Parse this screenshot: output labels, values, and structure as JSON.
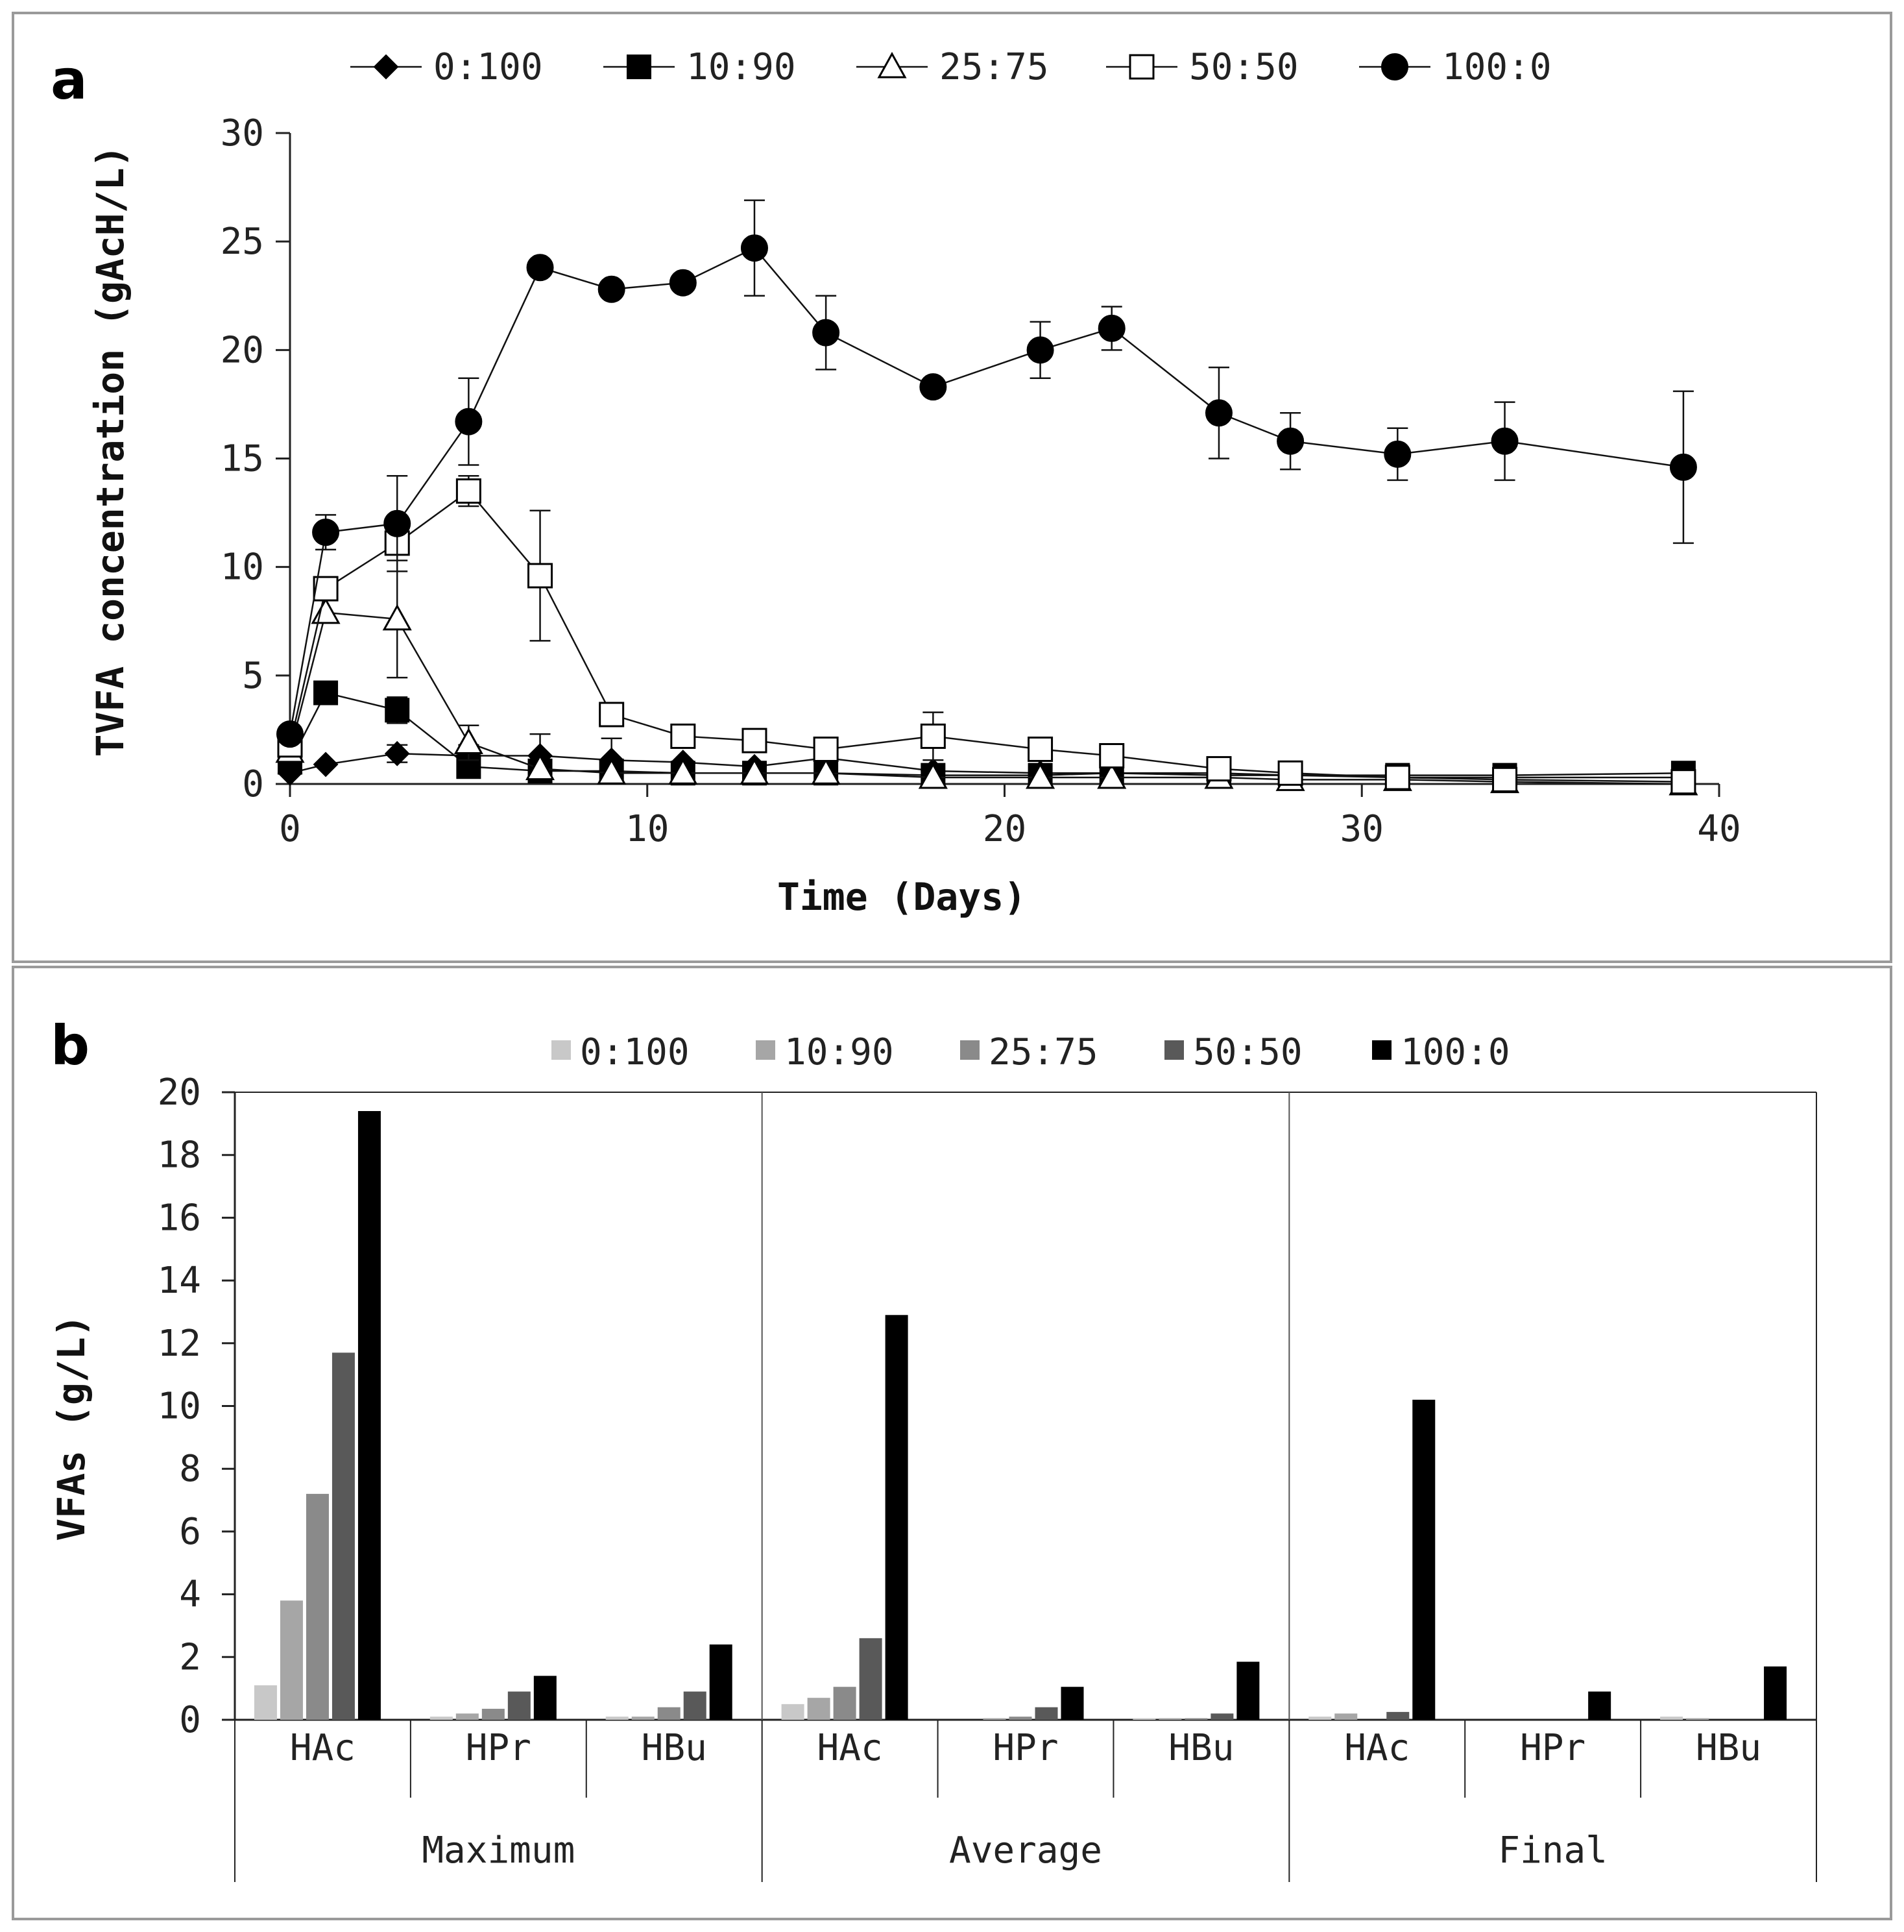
{
  "chart_data": [
    {
      "panel": "a",
      "type": "line",
      "xlabel": "Time (Days)",
      "ylabel": "TVFA concentration (gAcH/L)",
      "xlim": [
        0,
        40
      ],
      "ylim": [
        0,
        30
      ],
      "xticks": [
        0,
        10,
        20,
        30,
        40
      ],
      "yticks": [
        0,
        5,
        10,
        15,
        20,
        25,
        30
      ],
      "grid": false,
      "legend_position": "top",
      "series": [
        {
          "name": "0:100",
          "marker": "diamond",
          "x": [
            0,
            1,
            3,
            5,
            7,
            9,
            11,
            13,
            15,
            18,
            21,
            23,
            26,
            28,
            31,
            34,
            39
          ],
          "y": [
            0.5,
            0.9,
            1.4,
            1.3,
            1.3,
            1.1,
            1.0,
            0.8,
            1.2,
            0.6,
            0.5,
            0.5,
            0.4,
            0.4,
            0.3,
            0.3,
            0.3
          ],
          "err": [
            0,
            0,
            0.4,
            0.5,
            1.0,
            1.0,
            0,
            0,
            0,
            0,
            0,
            0,
            0,
            0,
            0,
            0,
            0
          ]
        },
        {
          "name": "10:90",
          "marker": "filled-square",
          "x": [
            0,
            1,
            3,
            5,
            7,
            9,
            11,
            13,
            15,
            18,
            21,
            23,
            26,
            28,
            31,
            34,
            39
          ],
          "y": [
            1.0,
            4.2,
            3.4,
            0.8,
            0.6,
            0.6,
            0.5,
            0.5,
            0.5,
            0.4,
            0.4,
            0.5,
            0.5,
            0.4,
            0.4,
            0.4,
            0.5
          ],
          "err": [
            0,
            0,
            0.6,
            0,
            0,
            0,
            0,
            0,
            0,
            0,
            0,
            0,
            0,
            0,
            0,
            0,
            0
          ]
        },
        {
          "name": "25:75",
          "marker": "open-triangle",
          "x": [
            0,
            1,
            3,
            5,
            7,
            9,
            11,
            13,
            15,
            18,
            21,
            23,
            26,
            28,
            31,
            34,
            39
          ],
          "y": [
            1.5,
            7.9,
            7.6,
            1.9,
            0.7,
            0.5,
            0.5,
            0.5,
            0.5,
            0.3,
            0.3,
            0.3,
            0.3,
            0.2,
            0.2,
            0.1,
            0.0
          ],
          "err": [
            0,
            0,
            2.7,
            0.8,
            0,
            0,
            0,
            0,
            0,
            0,
            0,
            0,
            0,
            0,
            0,
            0,
            0
          ]
        },
        {
          "name": "50:50",
          "marker": "open-square",
          "x": [
            0,
            1,
            3,
            5,
            7,
            9,
            11,
            13,
            15,
            18,
            21,
            23,
            26,
            28,
            31,
            34,
            39
          ],
          "y": [
            1.8,
            9.0,
            11.1,
            13.5,
            9.6,
            3.2,
            2.2,
            2.0,
            1.6,
            2.2,
            1.6,
            1.3,
            0.7,
            0.5,
            0.3,
            0.2,
            0.1
          ],
          "err": [
            0,
            0,
            0,
            0.7,
            3.0,
            0.4,
            0.4,
            0.4,
            0,
            1.1,
            0.2,
            0.2,
            0,
            0,
            0,
            0,
            0
          ]
        },
        {
          "name": "100:0",
          "marker": "filled-circle",
          "x": [
            0,
            1,
            3,
            5,
            7,
            9,
            11,
            13,
            15,
            18,
            21,
            23,
            26,
            28,
            31,
            34,
            39
          ],
          "y": [
            2.3,
            11.6,
            12.0,
            16.7,
            23.8,
            22.8,
            23.1,
            24.7,
            20.8,
            18.3,
            20.0,
            21.0,
            17.1,
            15.8,
            15.2,
            15.8,
            14.6
          ],
          "err": [
            0,
            0.8,
            2.2,
            2.0,
            0,
            0,
            0,
            2.2,
            1.7,
            0,
            1.3,
            1.0,
            2.1,
            1.3,
            1.2,
            1.8,
            3.5
          ]
        }
      ]
    },
    {
      "panel": "b",
      "type": "bar",
      "xlabel": "",
      "ylabel": "VFAs (g/L)",
      "ylim": [
        0,
        20
      ],
      "yticks": [
        0,
        2,
        4,
        6,
        8,
        10,
        12,
        14,
        16,
        18,
        20
      ],
      "grid": false,
      "legend_position": "top",
      "groups": [
        "Maximum",
        "Average",
        "Final"
      ],
      "categories": [
        "HAc",
        "HPr",
        "HBu",
        "HAc",
        "HPr",
        "HBu",
        "HAc",
        "HPr",
        "HBu"
      ],
      "series": [
        {
          "name": "0:100",
          "color": "#c8c8c8",
          "values": [
            1.1,
            0.1,
            0.1,
            0.5,
            0.0,
            0.05,
            0.1,
            0.0,
            0.1
          ]
        },
        {
          "name": "10:90",
          "color": "#a6a6a6",
          "values": [
            3.8,
            0.2,
            0.1,
            0.7,
            0.05,
            0.05,
            0.2,
            0.0,
            0.05
          ]
        },
        {
          "name": "25:75",
          "color": "#8a8a8a",
          "values": [
            7.2,
            0.35,
            0.4,
            1.05,
            0.1,
            0.05,
            0.0,
            0.0,
            0.0
          ]
        },
        {
          "name": "50:50",
          "color": "#595959",
          "values": [
            11.7,
            0.9,
            0.9,
            2.6,
            0.4,
            0.2,
            0.25,
            0.0,
            0.0
          ]
        },
        {
          "name": "100:0",
          "color": "#000000",
          "values": [
            19.4,
            1.4,
            2.4,
            12.9,
            1.05,
            1.85,
            10.2,
            0.9,
            1.7
          ]
        }
      ]
    }
  ],
  "panels": {
    "a": {
      "label": "a"
    },
    "b": {
      "label": "b"
    }
  }
}
